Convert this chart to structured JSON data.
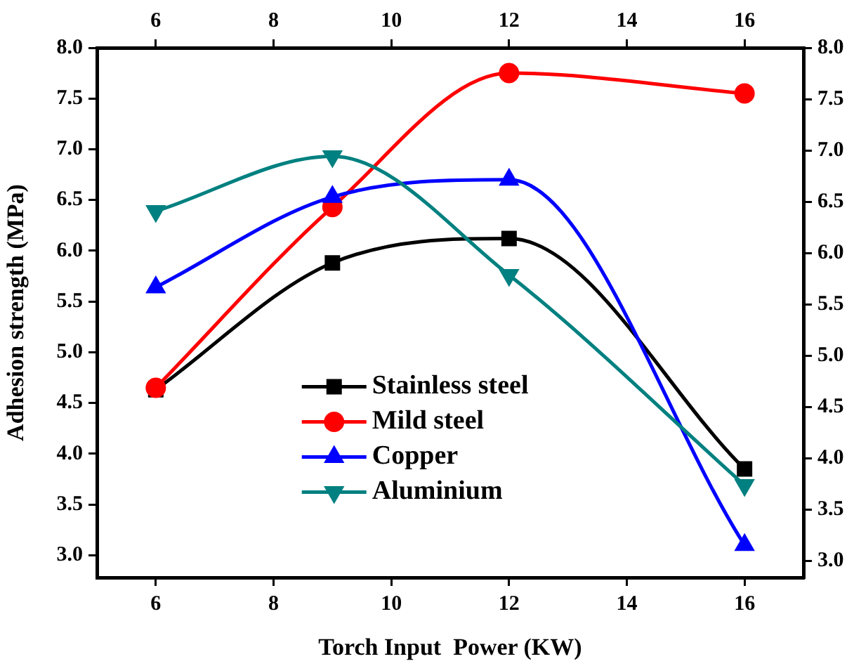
{
  "chart_data": {
    "type": "line",
    "xlabel": "Torch Input  Power (KW)",
    "ylabel": "Adhesion strength (MPa)",
    "x": [
      6,
      9,
      12,
      16
    ],
    "series": [
      {
        "name": "Stainless steel",
        "color": "#000000",
        "marker": "square",
        "values": [
          4.63,
          5.88,
          6.12,
          3.85
        ]
      },
      {
        "name": "Mild steel",
        "color": "#ff0000",
        "marker": "circle",
        "values": [
          4.65,
          6.43,
          7.75,
          7.55
        ]
      },
      {
        "name": "Copper",
        "color": "#0000ff",
        "marker": "triangle",
        "values": [
          5.64,
          6.53,
          6.7,
          3.1
        ]
      },
      {
        "name": "Aluminium",
        "color": "#008080",
        "marker": "triangle-down",
        "values": [
          6.39,
          6.93,
          5.76,
          3.69
        ]
      }
    ],
    "xlim": [
      5,
      17
    ],
    "xticks": [
      6,
      8,
      10,
      12,
      14,
      16
    ],
    "x2lim": [
      5,
      17
    ],
    "x2ticks": [
      6,
      8,
      10,
      12,
      14,
      16
    ],
    "ylim": [
      2.78,
      8.0
    ],
    "yticks": [
      {
        "value": 3,
        "label": "3.0"
      },
      {
        "value": 3.5,
        "label": "3.5"
      },
      {
        "value": 4,
        "label": "4.0"
      },
      {
        "value": 4.5,
        "label": "4.5"
      },
      {
        "value": 5,
        "label": "5.0"
      },
      {
        "value": 5.5,
        "label": "5.5"
      },
      {
        "value": 6,
        "label": "6.0"
      },
      {
        "value": 6.5,
        "label": "6.5"
      },
      {
        "value": 7,
        "label": "7.0"
      },
      {
        "value": 7.5,
        "label": "7.5"
      },
      {
        "value": 8,
        "label": "8.0"
      }
    ],
    "y2lim": [
      2.84,
      8.0
    ],
    "y2ticks": [
      {
        "value": 3,
        "label": "3.0"
      },
      {
        "value": 3.5,
        "label": "3.5"
      },
      {
        "value": 4,
        "label": "4.0"
      },
      {
        "value": 4.5,
        "label": "4.5"
      },
      {
        "value": 5,
        "label": "5.0"
      },
      {
        "value": 5.5,
        "label": "5.5"
      },
      {
        "value": 6,
        "label": "6.0"
      },
      {
        "value": 6.5,
        "label": "6.5"
      },
      {
        "value": 7,
        "label": "7.0"
      },
      {
        "value": 7.5,
        "label": "7.5"
      },
      {
        "value": 8,
        "label": "8.0"
      }
    ],
    "grid": false,
    "legend": "bottom",
    "line_style": "solid"
  }
}
